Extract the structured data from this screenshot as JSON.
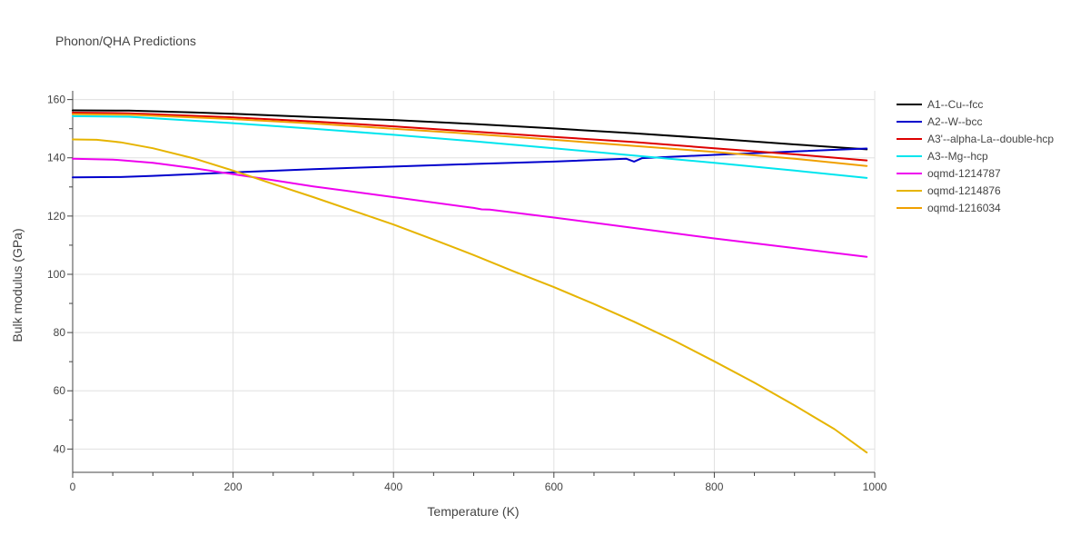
{
  "chart_data": {
    "type": "line",
    "title": "Phonon/QHA Predictions",
    "xlabel": "Temperature (K)",
    "ylabel": "Bulk modulus (GPa)",
    "xlim": [
      0,
      1000
    ],
    "ylim": [
      32,
      163
    ],
    "x_ticks": [
      0,
      200,
      400,
      600,
      800,
      1000
    ],
    "y_ticks": [
      40,
      60,
      80,
      100,
      120,
      140,
      160
    ],
    "grid": true,
    "legend_position": "top-right",
    "series": [
      {
        "name": "A1--Cu--fcc",
        "color": "#000000",
        "points": [
          [
            0,
            156.3
          ],
          [
            70,
            156.2
          ],
          [
            150,
            155.6
          ],
          [
            200,
            155.1
          ],
          [
            300,
            154.0
          ],
          [
            400,
            153.0
          ],
          [
            500,
            151.6
          ],
          [
            600,
            150.1
          ],
          [
            700,
            148.4
          ],
          [
            800,
            146.6
          ],
          [
            900,
            144.6
          ],
          [
            990,
            142.9
          ]
        ]
      },
      {
        "name": "A2--W--bcc",
        "color": "#0000cc",
        "points": [
          [
            0,
            133.3
          ],
          [
            60,
            133.4
          ],
          [
            100,
            133.8
          ],
          [
            200,
            135.0
          ],
          [
            300,
            136.1
          ],
          [
            400,
            137.0
          ],
          [
            500,
            137.9
          ],
          [
            600,
            138.7
          ],
          [
            690,
            139.7
          ],
          [
            700,
            138.7
          ],
          [
            710,
            139.9
          ],
          [
            800,
            141.0
          ],
          [
            900,
            142.2
          ],
          [
            990,
            143.2
          ]
        ]
      },
      {
        "name": "A3'--alpha-La--double-hcp",
        "color": "#dd0000",
        "points": [
          [
            0,
            155.5
          ],
          [
            70,
            155.3
          ],
          [
            200,
            153.9
          ],
          [
            300,
            152.5
          ],
          [
            400,
            150.8
          ],
          [
            500,
            149.0
          ],
          [
            600,
            147.2
          ],
          [
            700,
            145.4
          ],
          [
            800,
            143.3
          ],
          [
            900,
            141.2
          ],
          [
            990,
            139.1
          ]
        ]
      },
      {
        "name": "A3--Mg--hcp",
        "color": "#00e5ee",
        "points": [
          [
            0,
            154.3
          ],
          [
            70,
            154.1
          ],
          [
            200,
            151.9
          ],
          [
            300,
            150.0
          ],
          [
            400,
            147.9
          ],
          [
            500,
            145.7
          ],
          [
            600,
            143.3
          ],
          [
            700,
            140.8
          ],
          [
            800,
            138.3
          ],
          [
            900,
            135.6
          ],
          [
            990,
            133.1
          ]
        ]
      },
      {
        "name": "oqmd-1214787",
        "color": "#ee00ee",
        "points": [
          [
            0,
            139.7
          ],
          [
            50,
            139.4
          ],
          [
            100,
            138.3
          ],
          [
            150,
            136.5
          ],
          [
            200,
            134.4
          ],
          [
            250,
            132.3
          ],
          [
            300,
            130.2
          ],
          [
            400,
            126.5
          ],
          [
            500,
            122.8
          ],
          [
            510,
            122.3
          ],
          [
            520,
            122.2
          ],
          [
            600,
            119.5
          ],
          [
            700,
            115.9
          ],
          [
            800,
            112.3
          ],
          [
            900,
            109.0
          ],
          [
            990,
            106.0
          ]
        ]
      },
      {
        "name": "oqmd-1214876",
        "color": "#e6b400",
        "points": [
          [
            0,
            146.3
          ],
          [
            30,
            146.2
          ],
          [
            60,
            145.3
          ],
          [
            100,
            143.3
          ],
          [
            150,
            139.9
          ],
          [
            200,
            135.6
          ],
          [
            250,
            131.0
          ],
          [
            300,
            126.5
          ],
          [
            350,
            121.8
          ],
          [
            400,
            117.1
          ],
          [
            450,
            111.9
          ],
          [
            500,
            106.6
          ],
          [
            550,
            101.0
          ],
          [
            600,
            95.6
          ],
          [
            650,
            89.8
          ],
          [
            700,
            83.7
          ],
          [
            750,
            77.2
          ],
          [
            800,
            70.1
          ],
          [
            850,
            62.8
          ],
          [
            900,
            55.0
          ],
          [
            950,
            46.8
          ],
          [
            990,
            38.8
          ]
        ]
      },
      {
        "name": "oqmd-1216034",
        "color": "#f0a000",
        "points": [
          [
            0,
            155.0
          ],
          [
            70,
            154.8
          ],
          [
            200,
            153.3
          ],
          [
            300,
            151.8
          ],
          [
            400,
            150.0
          ],
          [
            500,
            148.2
          ],
          [
            600,
            146.2
          ],
          [
            700,
            144.1
          ],
          [
            800,
            142.0
          ],
          [
            900,
            139.7
          ],
          [
            990,
            137.2
          ]
        ]
      }
    ]
  }
}
